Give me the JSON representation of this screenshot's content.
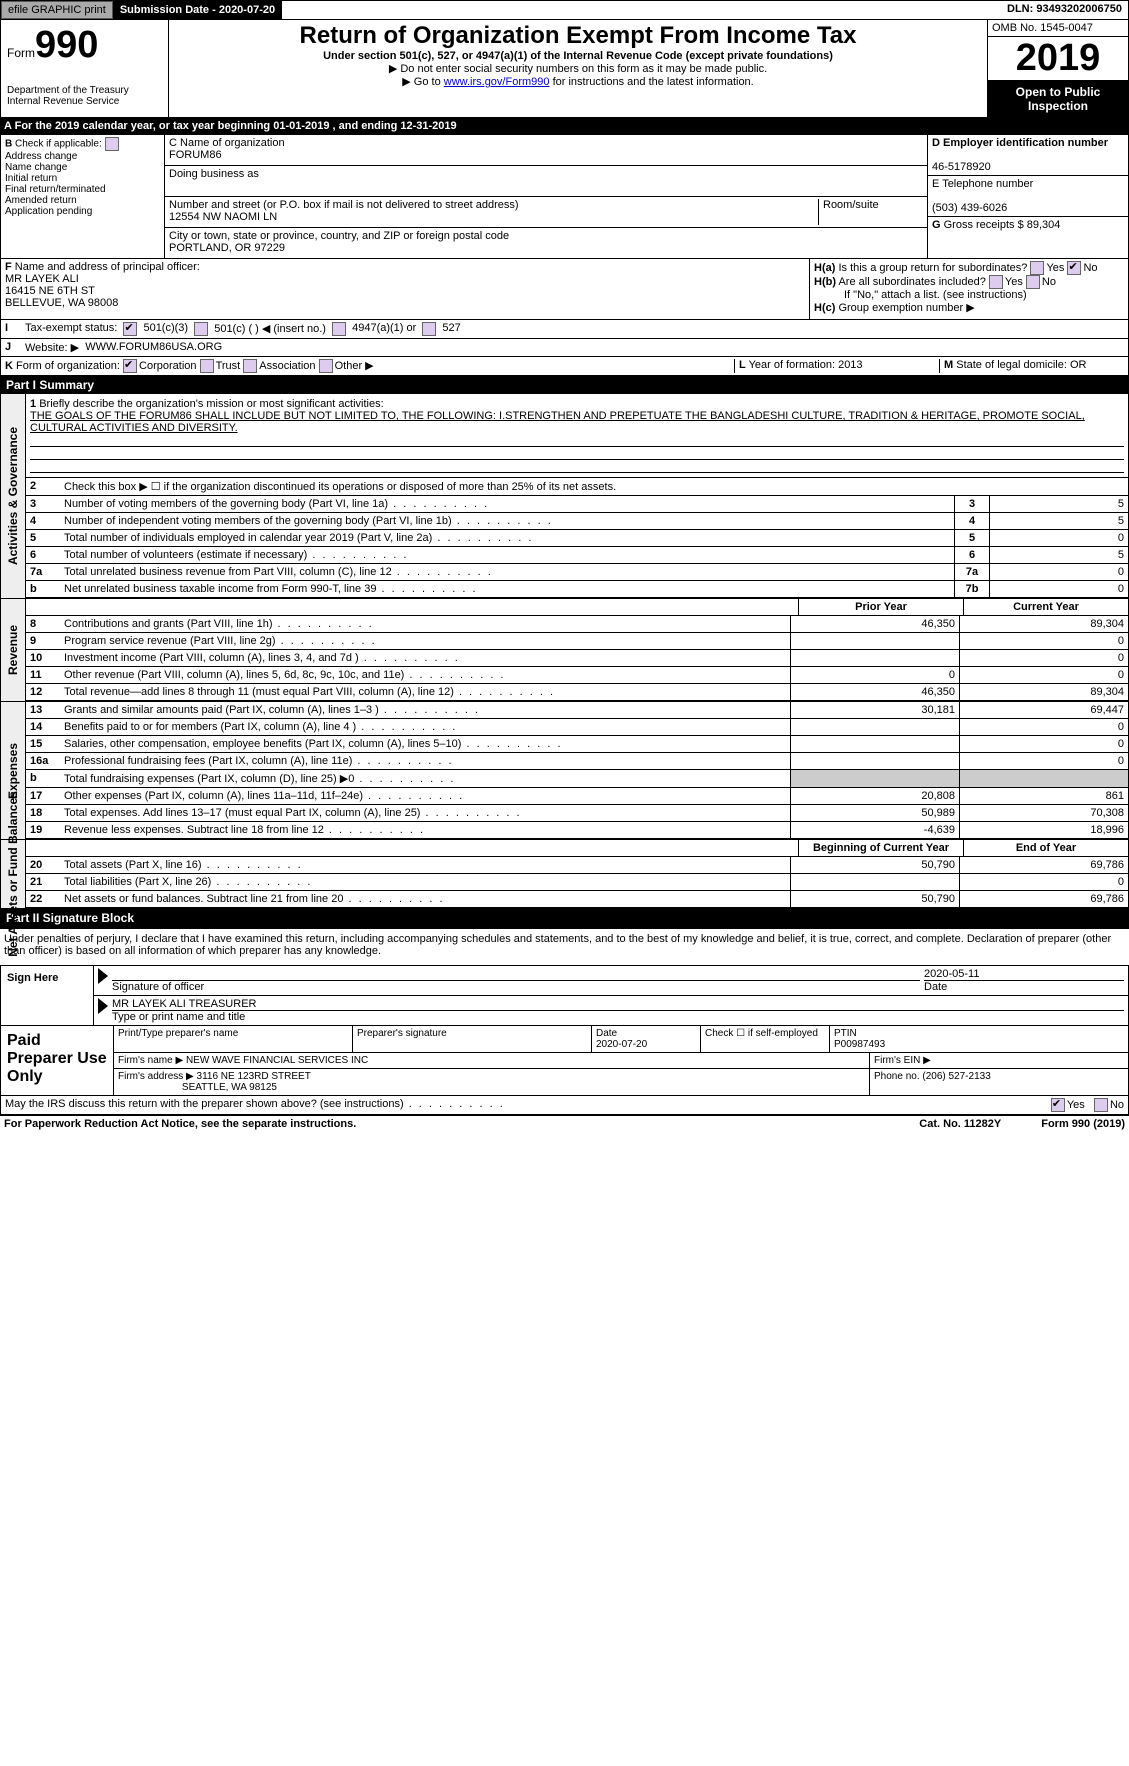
{
  "topline": {
    "efile": "efile GRAPHIC print",
    "subdate": "Submission Date - 2020-07-20",
    "dln": "DLN: 93493202006750"
  },
  "header": {
    "form_prefix": "Form",
    "form_no": "990",
    "dept1": "Department of the Treasury",
    "dept2": "Internal Revenue Service",
    "title": "Return of Organization Exempt From Income Tax",
    "sub1": "Under section 501(c), 527, or 4947(a)(1) of the Internal Revenue Code (except private foundations)",
    "sub2": "▶ Do not enter social security numbers on this form as it may be made public.",
    "sub3a": "▶ Go to ",
    "sub3link": "www.irs.gov/Form990",
    "sub3b": " for instructions and the latest information.",
    "omb": "OMB No. 1545-0047",
    "year": "2019",
    "open": "Open to Public Inspection"
  },
  "row_a": {
    "label_a": "A",
    "text": "For the 2019 calendar year, or tax year beginning 01-01-2019",
    "ending": ", and ending 12-31-2019"
  },
  "section_b": {
    "label": "B",
    "check_if": "Check if applicable:",
    "addr_change": "Address change",
    "name_change": "Name change",
    "initial": "Initial return",
    "final": "Final return/terminated",
    "amended": "Amended return",
    "app_pending": "Application pending"
  },
  "section_c": {
    "label": "C",
    "name_lbl": "Name of organization",
    "name": "FORUM86",
    "dba_lbl": "Doing business as",
    "dba": "",
    "addr_lbl": "Number and street (or P.O. box if mail is not delivered to street address)",
    "room_lbl": "Room/suite",
    "addr": "12554 NW NAOMI LN",
    "city_lbl": "City or town, state or province, country, and ZIP or foreign postal code",
    "city": "PORTLAND, OR  97229"
  },
  "section_de": {
    "d_lbl": "D Employer identification number",
    "d_val": "46-5178920",
    "e_lbl": "E Telephone number",
    "e_val": "(503) 439-6026",
    "g_lbl": "G",
    "g_text": "Gross receipts $ 89,304"
  },
  "section_f": {
    "label": "F",
    "lbl": "Name and address of principal officer:",
    "name": "MR LAYEK ALI",
    "addr1": "16415 NE 6TH ST",
    "addr2": "BELLEVUE, WA  98008"
  },
  "section_h": {
    "ha_lbl": "H(a)",
    "ha_text": "Is this a group return for subordinates?",
    "hb_lbl": "H(b)",
    "hb_text": "Are all subordinates included?",
    "hb_note": "If \"No,\" attach a list. (see instructions)",
    "hc_lbl": "H(c)",
    "hc_text": "Group exemption number ▶",
    "yes": "Yes",
    "no": "No"
  },
  "row_i": {
    "label": "I",
    "text": "Tax-exempt status:",
    "o1": "501(c)(3)",
    "o2": "501(c) (  ) ◀ (insert no.)",
    "o3": "4947(a)(1) or",
    "o4": "527"
  },
  "row_j": {
    "label": "J",
    "text": "Website: ▶",
    "val": "WWW.FORUM86USA.ORG"
  },
  "row_k": {
    "label": "K",
    "text": "Form of organization:",
    "corp": "Corporation",
    "trust": "Trust",
    "assoc": "Association",
    "other": "Other ▶"
  },
  "row_lm": {
    "l_lbl": "L",
    "l_text": "Year of formation: 2013",
    "m_lbl": "M",
    "m_text": "State of legal domicile: OR"
  },
  "part1": {
    "header": "Part I      Summary",
    "sidebar1": "Activities & Governance",
    "sidebar2": "Revenue",
    "sidebar3": "Expenses",
    "sidebar4": "Net Assets or Fund Balances",
    "line1_lbl": "1",
    "line1_text": "Briefly describe the organization's mission or most significant activities:",
    "line1_val": "THE GOALS OF THE FORUM86 SHALL INCLUDE BUT NOT LIMITED TO, THE FOLLOWING: I.STRENGTHEN AND PREPETUATE THE BANGLADESHI CULTURE, TRADITION & HERITAGE, PROMOTE SOCIAL, CULTURAL ACTIVITIES AND DIVERSITY.",
    "line2_lbl": "2",
    "line2_text": "Check this box ▶ ☐ if the organization discontinued its operations or disposed of more than 25% of its net assets.",
    "lines_ag": [
      {
        "no": "3",
        "desc": "Number of voting members of the governing body (Part VI, line 1a)",
        "box": "3",
        "val": "5"
      },
      {
        "no": "4",
        "desc": "Number of independent voting members of the governing body (Part VI, line 1b)",
        "box": "4",
        "val": "5"
      },
      {
        "no": "5",
        "desc": "Total number of individuals employed in calendar year 2019 (Part V, line 2a)",
        "box": "5",
        "val": "0"
      },
      {
        "no": "6",
        "desc": "Total number of volunteers (estimate if necessary)",
        "box": "6",
        "val": "5"
      },
      {
        "no": "7a",
        "desc": "Total unrelated business revenue from Part VIII, column (C), line 12",
        "box": "7a",
        "val": "0"
      },
      {
        "no": "b",
        "desc": "Net unrelated business taxable income from Form 990-T, line 39",
        "box": "7b",
        "val": "0"
      }
    ],
    "prior_h": "Prior Year",
    "curr_h": "Current Year",
    "rev_lines": [
      {
        "no": "8",
        "desc": "Contributions and grants (Part VIII, line 1h)",
        "prior": "46,350",
        "curr": "89,304"
      },
      {
        "no": "9",
        "desc": "Program service revenue (Part VIII, line 2g)",
        "prior": "",
        "curr": "0"
      },
      {
        "no": "10",
        "desc": "Investment income (Part VIII, column (A), lines 3, 4, and 7d )",
        "prior": "",
        "curr": "0"
      },
      {
        "no": "11",
        "desc": "Other revenue (Part VIII, column (A), lines 5, 6d, 8c, 9c, 10c, and 11e)",
        "prior": "0",
        "curr": "0"
      },
      {
        "no": "12",
        "desc": "Total revenue—add lines 8 through 11 (must equal Part VIII, column (A), line 12)",
        "prior": "46,350",
        "curr": "89,304"
      }
    ],
    "exp_lines": [
      {
        "no": "13",
        "desc": "Grants and similar amounts paid (Part IX, column (A), lines 1–3 )",
        "prior": "30,181",
        "curr": "69,447"
      },
      {
        "no": "14",
        "desc": "Benefits paid to or for members (Part IX, column (A), line 4 )",
        "prior": "",
        "curr": "0"
      },
      {
        "no": "15",
        "desc": "Salaries, other compensation, employee benefits (Part IX, column (A), lines 5–10)",
        "prior": "",
        "curr": "0"
      },
      {
        "no": "16a",
        "desc": "Professional fundraising fees (Part IX, column (A), line 11e)",
        "prior": "",
        "curr": "0"
      },
      {
        "no": "b",
        "desc": "Total fundraising expenses (Part IX, column (D), line 25) ▶0",
        "prior": "shaded",
        "curr": "shaded"
      },
      {
        "no": "17",
        "desc": "Other expenses (Part IX, column (A), lines 11a–11d, 11f–24e)",
        "prior": "20,808",
        "curr": "861"
      },
      {
        "no": "18",
        "desc": "Total expenses. Add lines 13–17 (must equal Part IX, column (A), line 25)",
        "prior": "50,989",
        "curr": "70,308"
      },
      {
        "no": "19",
        "desc": "Revenue less expenses. Subtract line 18 from line 12",
        "prior": "-4,639",
        "curr": "18,996"
      }
    ],
    "na_prior_h": "Beginning of Current Year",
    "na_curr_h": "End of Year",
    "na_lines": [
      {
        "no": "20",
        "desc": "Total assets (Part X, line 16)",
        "prior": "50,790",
        "curr": "69,786"
      },
      {
        "no": "21",
        "desc": "Total liabilities (Part X, line 26)",
        "prior": "",
        "curr": "0"
      },
      {
        "no": "22",
        "desc": "Net assets or fund balances. Subtract line 21 from line 20",
        "prior": "50,790",
        "curr": "69,786"
      }
    ]
  },
  "part2": {
    "header": "Part II      Signature Block",
    "penalty": "Under penalties of perjury, I declare that I have examined this return, including accompanying schedules and statements, and to the best of my knowledge and belief, it is true, correct, and complete. Declaration of preparer (other than officer) is based on all information of which preparer has any knowledge.",
    "sign_here": "Sign Here",
    "sig_officer": "Signature of officer",
    "sig_date": "2020-05-11",
    "date_lbl": "Date",
    "name_title": "MR LAYEK ALI  TREASURER",
    "name_title_lbl": "Type or print name and title",
    "paid_prep": "Paid Preparer Use Only",
    "prep_name_lbl": "Print/Type preparer's name",
    "prep_sig_lbl": "Preparer's signature",
    "prep_date_lbl": "Date",
    "prep_date": "2020-07-20",
    "prep_check": "Check ☐ if self-employed",
    "ptin_lbl": "PTIN",
    "ptin": "P00987493",
    "firm_name_lbl": "Firm's name   ▶",
    "firm_name": "NEW WAVE FINANCIAL SERVICES INC",
    "firm_ein_lbl": "Firm's EIN ▶",
    "firm_addr_lbl": "Firm's address ▶",
    "firm_addr1": "3116 NE 123RD STREET",
    "firm_addr2": "SEATTLE, WA  98125",
    "firm_phone_lbl": "Phone no. (206) 527-2133",
    "discuss": "May the IRS discuss this return with the preparer shown above? (see instructions)",
    "yes": "Yes",
    "no": "No"
  },
  "footer": {
    "pra": "For Paperwork Reduction Act Notice, see the separate instructions.",
    "cat": "Cat. No. 11282Y",
    "form": "Form 990 (2019)"
  }
}
